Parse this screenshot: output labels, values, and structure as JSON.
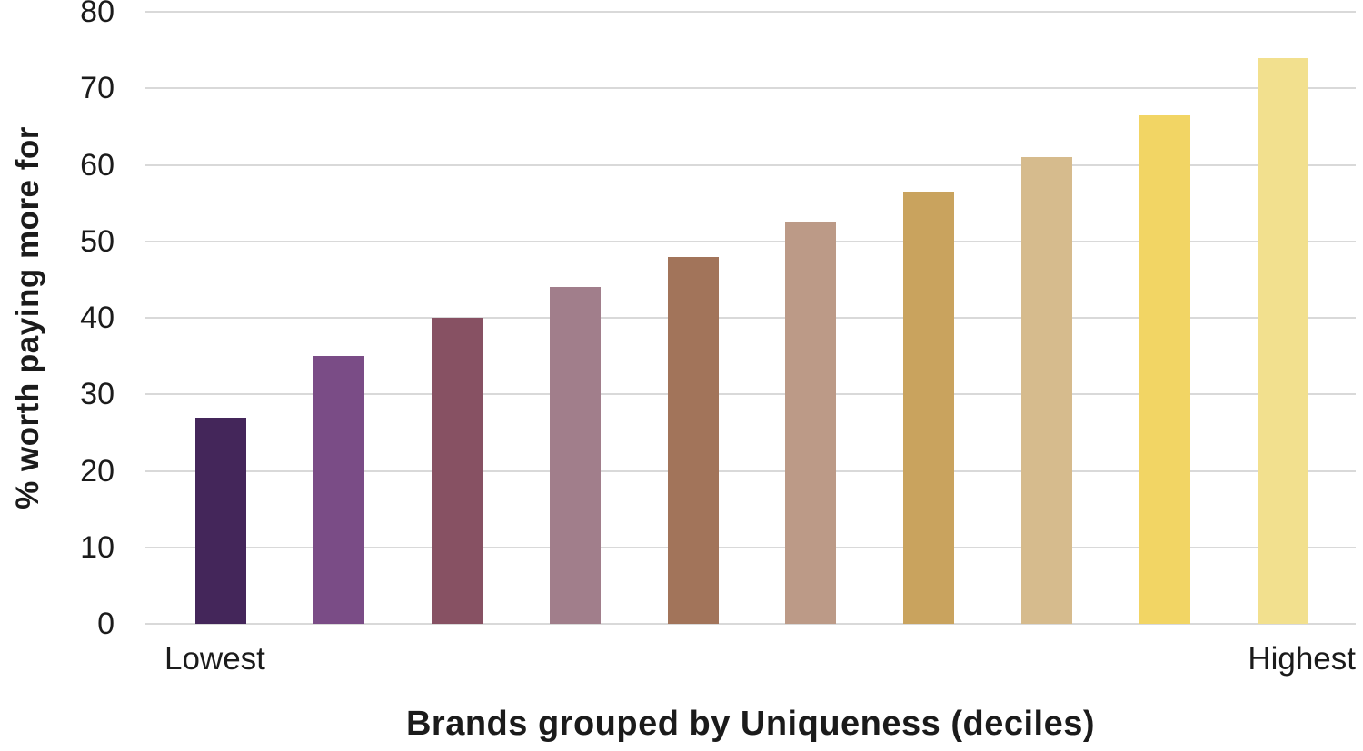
{
  "chart_data": {
    "type": "bar",
    "title": "",
    "xlabel": "Brands grouped by Uniqueness (deciles)",
    "ylabel": "% worth paying more for",
    "categories": [
      "Lowest",
      "",
      "",
      "",
      "",
      "",
      "",
      "",
      "",
      "Highest"
    ],
    "x_end_labels": {
      "left": "Lowest",
      "right": "Highest"
    },
    "values": [
      27,
      35,
      40,
      44,
      48,
      52.5,
      56.5,
      61,
      66.5,
      74
    ],
    "bar_colors": [
      "#44265a",
      "#7a4c86",
      "#875163",
      "#a17e8b",
      "#a2745a",
      "#bc9a87",
      "#c9a35e",
      "#d6bb8d",
      "#f2d564",
      "#f2e08e"
    ],
    "ylim": [
      0,
      80
    ],
    "yticks": [
      0,
      10,
      20,
      30,
      40,
      50,
      60,
      70,
      80
    ],
    "grid": true,
    "gridline_color": "#d9d9d9",
    "legend": "none",
    "background": "#ffffff",
    "text_color": "#1b1b1b"
  }
}
